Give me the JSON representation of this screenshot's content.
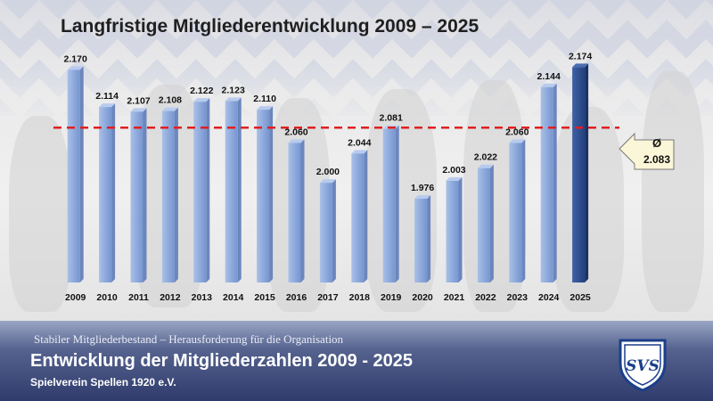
{
  "title": "Langfristige Mitgliederentwicklung 2009 – 2025",
  "footer": {
    "subtitle": "Stabiler Mitgliederbestand – Herausforderung für die Organisation",
    "heading": "Entwicklung der Mitgliederzahlen 2009 - 2025",
    "club": "Spielverein Spellen 1920 e.V.",
    "logo_text": "SVS"
  },
  "average": {
    "symbol": "Ø",
    "label": "2.083",
    "value": 2083
  },
  "colors": {
    "bar": "#8faadc",
    "bar_highlight": "#2f4f8f",
    "average_line": "#e02020",
    "callout_fill": "#fbf6d8"
  },
  "chart_data": {
    "type": "bar",
    "categories": [
      "2009",
      "2010",
      "2011",
      "2012",
      "2013",
      "2014",
      "2015",
      "2016",
      "2017",
      "2018",
      "2019",
      "2020",
      "2021",
      "2022",
      "2023",
      "2024",
      "2025"
    ],
    "values": [
      2170,
      2114,
      2107,
      2108,
      2122,
      2123,
      2110,
      2060,
      2000,
      2044,
      2081,
      1976,
      2003,
      2022,
      2060,
      2144,
      2174
    ],
    "data_labels": [
      "2.170",
      "2.114",
      "2.107",
      "2.108",
      "2.122",
      "2.123",
      "2.110",
      "2.060",
      "2.000",
      "2.044",
      "2.081",
      "1.976",
      "2.003",
      "2.022",
      "2.060",
      "2.144",
      "2.174"
    ],
    "highlight_category": "2025",
    "reference_line": 2083,
    "title": "Langfristige Mitgliederentwicklung 2009 – 2025",
    "xlabel": "",
    "ylabel": "",
    "grid": true,
    "legend": "none"
  }
}
